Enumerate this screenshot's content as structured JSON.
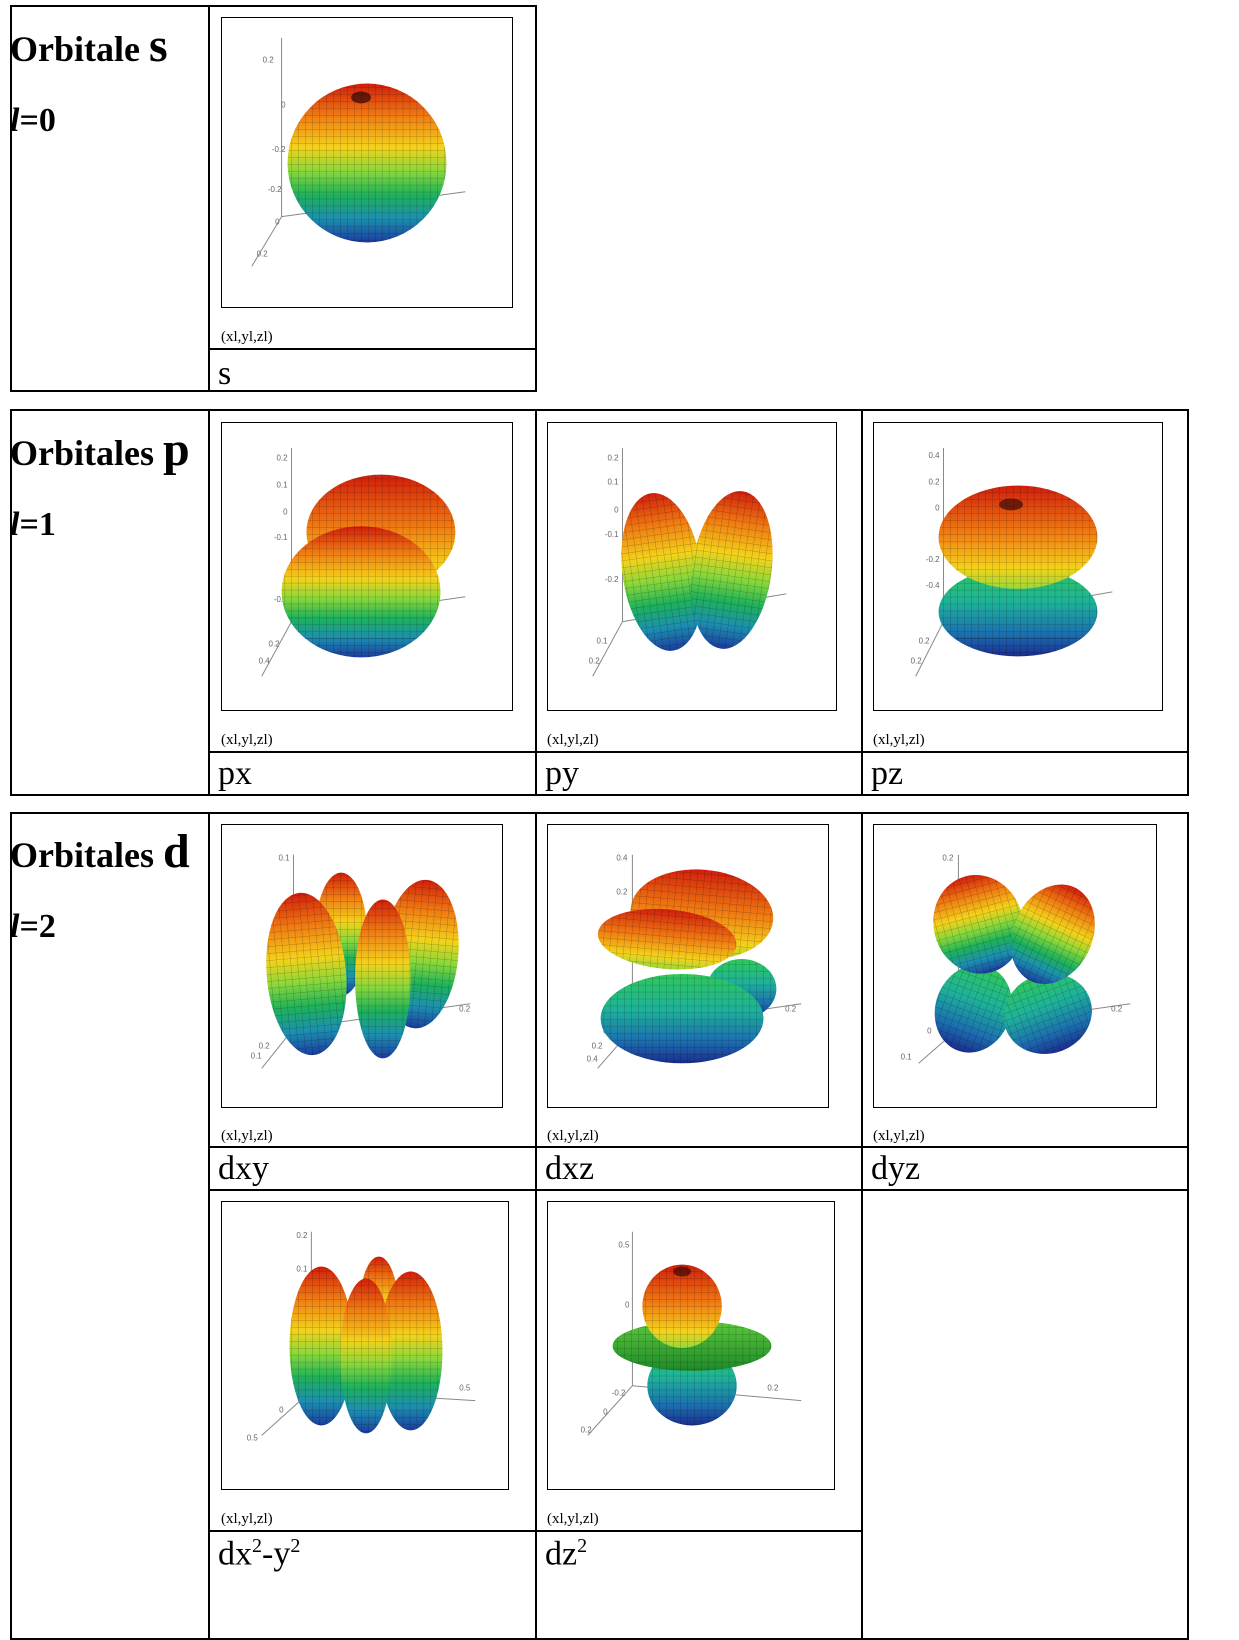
{
  "sections": {
    "s": {
      "title_prefix": "Orbitale ",
      "title_letter": "s",
      "l_symbol": "l",
      "l_eq": "=0"
    },
    "p": {
      "title_prefix": "Orbitales ",
      "title_letter": "p",
      "l_symbol": "l",
      "l_eq": "=1"
    },
    "d": {
      "title_prefix": "Orbitales ",
      "title_letter": "d",
      "l_symbol": "l",
      "l_eq": "=2"
    }
  },
  "plot_label": "(xl,yl,zl)",
  "captions": {
    "s": "s",
    "px": "px",
    "py": "py",
    "pz": "pz",
    "dxy": "dxy",
    "dxz": "dxz",
    "dyz": "dyz",
    "dx2y2_a": "dx",
    "dx2y2_sup1": "2",
    "dx2y2_b": "-y",
    "dx2y2_sup2": "2",
    "dz2_a": "dz",
    "dz2_sup": "2"
  },
  "ticks": {
    "s": [
      "0.2",
      "0",
      "-0.2",
      "-0.2",
      "0",
      "0.2"
    ],
    "px": [
      "0.2",
      "0.1",
      "0",
      "-0.1",
      "-0.2",
      "0.2",
      "0.4"
    ],
    "py": [
      "0.2",
      "0.1",
      "0",
      "-0.1",
      "-0.2",
      "0.1",
      "0.2"
    ],
    "pz": [
      "0.4",
      "0.2",
      "0",
      "-0.2",
      "-0.4",
      "0.2",
      "0.2"
    ],
    "dxy": [
      "0.1",
      "0.2",
      "0.1",
      "0.2"
    ],
    "dxz": [
      "0.4",
      "0.2",
      "0",
      "0.2",
      "0.4",
      "0.2"
    ],
    "dyz": [
      "0.2",
      "0",
      "0.2",
      "0.1"
    ],
    "dx2y2": [
      "0.2",
      "0.1",
      "0",
      "0.5",
      "0.5"
    ],
    "dz2": [
      "0.5",
      "0",
      "-0.2",
      "0",
      "0.2",
      "0.2"
    ]
  },
  "colors": {
    "lobe_gradient": [
      "#d01e0c",
      "#f07a12",
      "#f4d21a",
      "#8ad83a",
      "#1eb25a",
      "#1c8fb0",
      "#1b3c9e"
    ],
    "border": "#000000"
  }
}
